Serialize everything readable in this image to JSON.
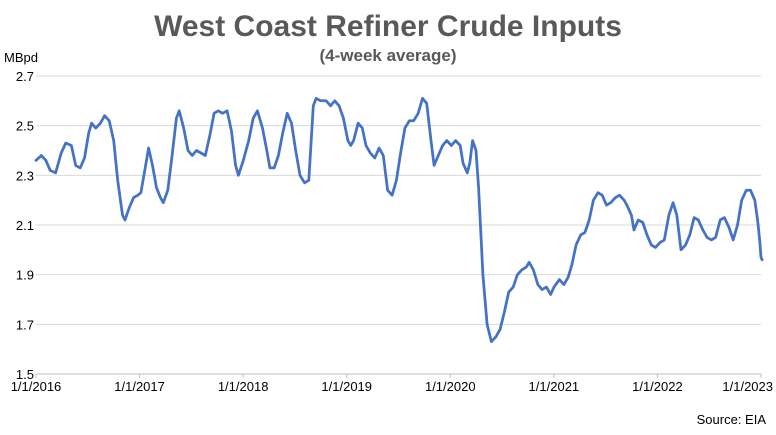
{
  "chart_data": {
    "type": "line",
    "title": "West Coast Refiner Crude Inputs",
    "subtitle": "(4-week average)",
    "ylabel": "MBpd",
    "xlabel": "",
    "source": "Source: EIA",
    "colors": {
      "series": "#4472c4",
      "title": "#595959",
      "text": "#000000",
      "grid": "#d9d9d9",
      "axis": "#bfbfbf"
    },
    "ylim": [
      1.5,
      2.7
    ],
    "yticks": [
      "2.7",
      "2.5",
      "2.3",
      "2.1",
      "1.9",
      "1.7",
      "1.5"
    ],
    "xlim": [
      "2016-01-01",
      "2023-01-01"
    ],
    "xticks": [
      "1/1/2016",
      "1/1/2017",
      "1/1/2018",
      "1/1/2019",
      "1/1/2020",
      "1/1/2021",
      "1/1/2022",
      "1/1/2023"
    ],
    "grid": true,
    "legend": "none",
    "series": [
      {
        "name": "",
        "points": [
          [
            "2016-01-01",
            2.36
          ],
          [
            "2016-01-20",
            2.38
          ],
          [
            "2016-02-05",
            2.36
          ],
          [
            "2016-02-20",
            2.32
          ],
          [
            "2016-03-10",
            2.31
          ],
          [
            "2016-03-30",
            2.39
          ],
          [
            "2016-04-15",
            2.43
          ],
          [
            "2016-05-05",
            2.42
          ],
          [
            "2016-05-20",
            2.34
          ],
          [
            "2016-06-05",
            2.33
          ],
          [
            "2016-06-20",
            2.37
          ],
          [
            "2016-07-05",
            2.47
          ],
          [
            "2016-07-15",
            2.51
          ],
          [
            "2016-07-30",
            2.49
          ],
          [
            "2016-08-15",
            2.51
          ],
          [
            "2016-08-30",
            2.54
          ],
          [
            "2016-09-15",
            2.52
          ],
          [
            "2016-10-01",
            2.44
          ],
          [
            "2016-10-15",
            2.28
          ],
          [
            "2016-11-01",
            2.14
          ],
          [
            "2016-11-10",
            2.12
          ],
          [
            "2016-11-25",
            2.17
          ],
          [
            "2016-12-10",
            2.21
          ],
          [
            "2016-12-25",
            2.22
          ],
          [
            "2017-01-05",
            2.23
          ],
          [
            "2017-01-20",
            2.33
          ],
          [
            "2017-02-01",
            2.41
          ],
          [
            "2017-02-15",
            2.34
          ],
          [
            "2017-03-01",
            2.25
          ],
          [
            "2017-03-15",
            2.21
          ],
          [
            "2017-03-25",
            2.19
          ],
          [
            "2017-04-10",
            2.24
          ],
          [
            "2017-04-25",
            2.38
          ],
          [
            "2017-05-10",
            2.53
          ],
          [
            "2017-05-20",
            2.56
          ],
          [
            "2017-06-05",
            2.49
          ],
          [
            "2017-06-20",
            2.4
          ],
          [
            "2017-07-05",
            2.38
          ],
          [
            "2017-07-20",
            2.4
          ],
          [
            "2017-08-05",
            2.39
          ],
          [
            "2017-08-20",
            2.38
          ],
          [
            "2017-09-05",
            2.46
          ],
          [
            "2017-09-20",
            2.55
          ],
          [
            "2017-10-05",
            2.56
          ],
          [
            "2017-10-20",
            2.55
          ],
          [
            "2017-11-05",
            2.56
          ],
          [
            "2017-11-20",
            2.48
          ],
          [
            "2017-12-05",
            2.34
          ],
          [
            "2017-12-15",
            2.3
          ],
          [
            "2018-01-01",
            2.36
          ],
          [
            "2018-01-20",
            2.44
          ],
          [
            "2018-02-05",
            2.53
          ],
          [
            "2018-02-20",
            2.56
          ],
          [
            "2018-03-10",
            2.49
          ],
          [
            "2018-03-25",
            2.4
          ],
          [
            "2018-04-05",
            2.33
          ],
          [
            "2018-04-20",
            2.33
          ],
          [
            "2018-05-05",
            2.38
          ],
          [
            "2018-05-20",
            2.47
          ],
          [
            "2018-06-05",
            2.55
          ],
          [
            "2018-06-20",
            2.51
          ],
          [
            "2018-07-05",
            2.4
          ],
          [
            "2018-07-20",
            2.3
          ],
          [
            "2018-08-05",
            2.27
          ],
          [
            "2018-08-20",
            2.28
          ],
          [
            "2018-09-05",
            2.58
          ],
          [
            "2018-09-15",
            2.61
          ],
          [
            "2018-10-01",
            2.6
          ],
          [
            "2018-10-20",
            2.6
          ],
          [
            "2018-11-05",
            2.58
          ],
          [
            "2018-11-20",
            2.6
          ],
          [
            "2018-12-05",
            2.58
          ],
          [
            "2018-12-20",
            2.53
          ],
          [
            "2019-01-05",
            2.44
          ],
          [
            "2019-01-15",
            2.42
          ],
          [
            "2019-01-25",
            2.44
          ],
          [
            "2019-02-10",
            2.51
          ],
          [
            "2019-02-25",
            2.49
          ],
          [
            "2019-03-10",
            2.42
          ],
          [
            "2019-03-25",
            2.39
          ],
          [
            "2019-04-10",
            2.37
          ],
          [
            "2019-04-25",
            2.41
          ],
          [
            "2019-05-10",
            2.38
          ],
          [
            "2019-05-25",
            2.24
          ],
          [
            "2019-06-10",
            2.22
          ],
          [
            "2019-06-25",
            2.28
          ],
          [
            "2019-07-10",
            2.39
          ],
          [
            "2019-07-25",
            2.49
          ],
          [
            "2019-08-10",
            2.52
          ],
          [
            "2019-08-25",
            2.52
          ],
          [
            "2019-09-10",
            2.55
          ],
          [
            "2019-09-25",
            2.61
          ],
          [
            "2019-10-10",
            2.59
          ],
          [
            "2019-10-25",
            2.44
          ],
          [
            "2019-11-05",
            2.34
          ],
          [
            "2019-11-20",
            2.38
          ],
          [
            "2019-12-05",
            2.42
          ],
          [
            "2019-12-20",
            2.44
          ],
          [
            "2020-01-05",
            2.42
          ],
          [
            "2020-01-20",
            2.44
          ],
          [
            "2020-02-05",
            2.42
          ],
          [
            "2020-02-15",
            2.35
          ],
          [
            "2020-03-01",
            2.31
          ],
          [
            "2020-03-10",
            2.35
          ],
          [
            "2020-03-20",
            2.44
          ],
          [
            "2020-04-01",
            2.4
          ],
          [
            "2020-04-10",
            2.25
          ],
          [
            "2020-04-25",
            1.9
          ],
          [
            "2020-05-10",
            1.7
          ],
          [
            "2020-05-25",
            1.63
          ],
          [
            "2020-06-10",
            1.65
          ],
          [
            "2020-06-25",
            1.68
          ],
          [
            "2020-07-10",
            1.75
          ],
          [
            "2020-07-25",
            1.83
          ],
          [
            "2020-08-10",
            1.85
          ],
          [
            "2020-08-25",
            1.9
          ],
          [
            "2020-09-10",
            1.92
          ],
          [
            "2020-09-25",
            1.93
          ],
          [
            "2020-10-05",
            1.95
          ],
          [
            "2020-10-20",
            1.92
          ],
          [
            "2020-11-05",
            1.86
          ],
          [
            "2020-11-20",
            1.84
          ],
          [
            "2020-12-05",
            1.85
          ],
          [
            "2020-12-20",
            1.82
          ],
          [
            "2021-01-01",
            1.85
          ],
          [
            "2021-01-20",
            1.88
          ],
          [
            "2021-02-05",
            1.86
          ],
          [
            "2021-02-20",
            1.89
          ],
          [
            "2021-03-05",
            1.94
          ],
          [
            "2021-03-20",
            2.02
          ],
          [
            "2021-04-05",
            2.06
          ],
          [
            "2021-04-20",
            2.07
          ],
          [
            "2021-05-05",
            2.12
          ],
          [
            "2021-05-20",
            2.2
          ],
          [
            "2021-06-05",
            2.23
          ],
          [
            "2021-06-20",
            2.22
          ],
          [
            "2021-07-05",
            2.18
          ],
          [
            "2021-07-20",
            2.19
          ],
          [
            "2021-08-05",
            2.21
          ],
          [
            "2021-08-20",
            2.22
          ],
          [
            "2021-09-05",
            2.2
          ],
          [
            "2021-09-15",
            2.18
          ],
          [
            "2021-10-01",
            2.14
          ],
          [
            "2021-10-10",
            2.08
          ],
          [
            "2021-10-25",
            2.12
          ],
          [
            "2021-11-10",
            2.11
          ],
          [
            "2021-11-25",
            2.06
          ],
          [
            "2021-12-10",
            2.02
          ],
          [
            "2021-12-25",
            2.01
          ],
          [
            "2022-01-10",
            2.03
          ],
          [
            "2022-01-25",
            2.04
          ],
          [
            "2022-02-10",
            2.14
          ],
          [
            "2022-02-25",
            2.19
          ],
          [
            "2022-03-10",
            2.14
          ],
          [
            "2022-03-25",
            2.0
          ],
          [
            "2022-04-10",
            2.02
          ],
          [
            "2022-04-25",
            2.06
          ],
          [
            "2022-05-10",
            2.13
          ],
          [
            "2022-05-25",
            2.12
          ],
          [
            "2022-06-10",
            2.08
          ],
          [
            "2022-06-25",
            2.05
          ],
          [
            "2022-07-10",
            2.04
          ],
          [
            "2022-07-25",
            2.05
          ],
          [
            "2022-08-10",
            2.12
          ],
          [
            "2022-08-25",
            2.13
          ],
          [
            "2022-09-10",
            2.09
          ],
          [
            "2022-09-25",
            2.04
          ],
          [
            "2022-10-10",
            2.1
          ],
          [
            "2022-10-25",
            2.2
          ],
          [
            "2022-11-10",
            2.24
          ],
          [
            "2022-11-25",
            2.24
          ],
          [
            "2022-12-10",
            2.2
          ],
          [
            "2022-12-20",
            2.12
          ],
          [
            "2022-12-28",
            2.03
          ],
          [
            "2023-01-01",
            1.97
          ],
          [
            "2023-01-05",
            1.96
          ]
        ]
      }
    ]
  }
}
